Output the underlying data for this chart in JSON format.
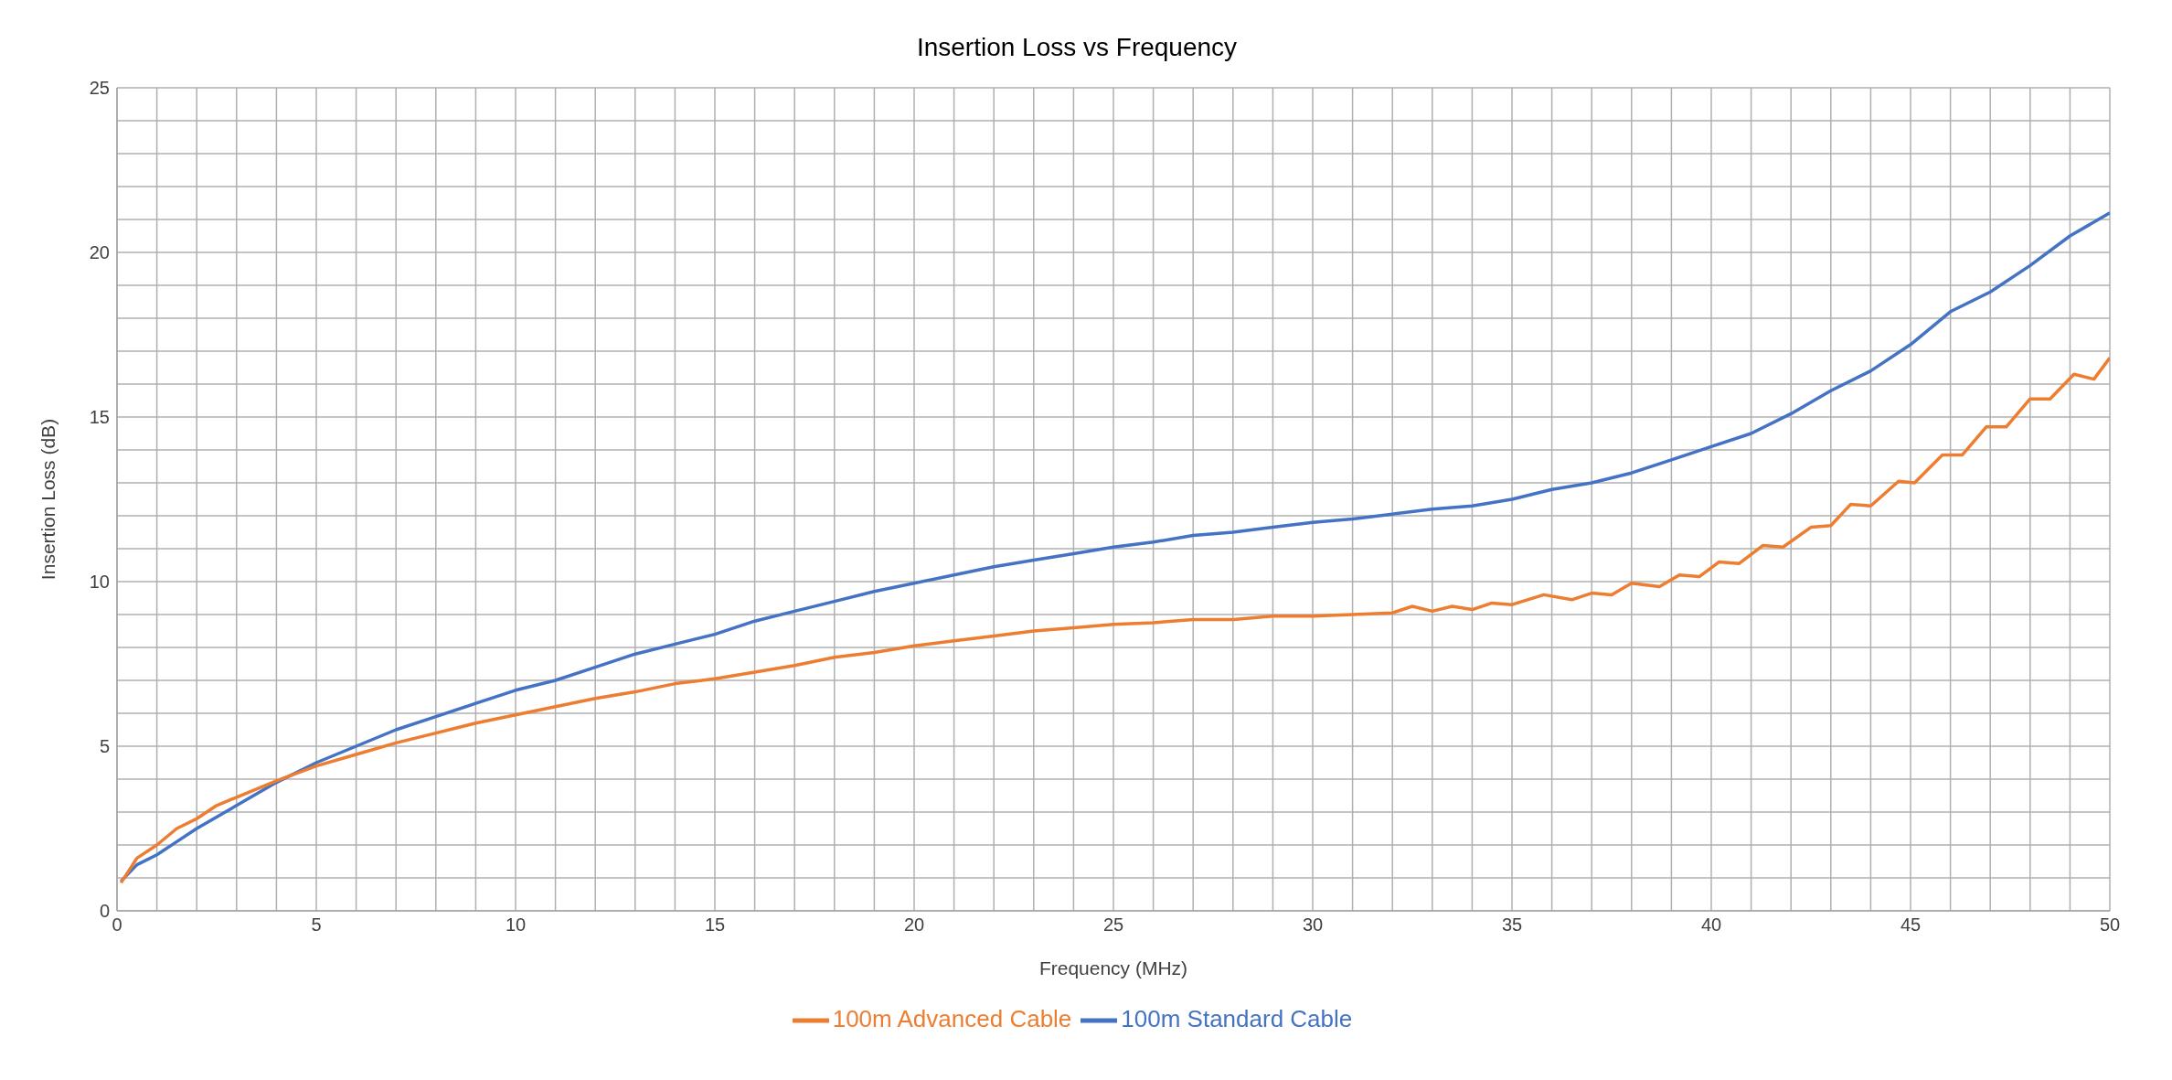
{
  "chart_data": {
    "type": "line",
    "title": "Insertion Loss vs Frequency",
    "xlabel": "Frequency (MHz)",
    "ylabel": "Insertion Loss (dB)",
    "xlim": [
      0,
      50
    ],
    "ylim": [
      0,
      25
    ],
    "xticks": [
      0,
      {
        "value": 1,
        "label": null
      },
      {
        "value": 2,
        "label": null
      },
      {
        "value": 3,
        "label": null
      },
      {
        "value": 4,
        "label": null
      },
      5,
      {
        "value": 6,
        "label": null
      },
      {
        "value": 7,
        "label": null
      },
      {
        "value": 8,
        "label": null
      },
      {
        "value": 9,
        "label": null
      },
      10,
      {
        "value": 11,
        "label": null
      },
      {
        "value": 12,
        "label": null
      },
      {
        "value": 13,
        "label": null
      },
      {
        "value": 14,
        "label": null
      },
      15,
      {
        "value": 16,
        "label": null
      },
      {
        "value": 17,
        "label": null
      },
      {
        "value": 18,
        "label": null
      },
      {
        "value": 19,
        "label": null
      },
      20,
      {
        "value": 21,
        "label": null
      },
      {
        "value": 22,
        "label": null
      },
      {
        "value": 23,
        "label": null
      },
      {
        "value": 24,
        "label": null
      },
      25,
      {
        "value": 26,
        "label": null
      },
      {
        "value": 27,
        "label": null
      },
      {
        "value": 28,
        "label": null
      },
      {
        "value": 29,
        "label": null
      },
      30,
      {
        "value": 31,
        "label": null
      },
      {
        "value": 32,
        "label": null
      },
      {
        "value": 33,
        "label": null
      },
      {
        "value": 34,
        "label": null
      },
      35,
      {
        "value": 36,
        "label": null
      },
      {
        "value": 37,
        "label": null
      },
      {
        "value": 38,
        "label": null
      },
      {
        "value": 39,
        "label": null
      },
      40,
      {
        "value": 41,
        "label": null
      },
      {
        "value": 42,
        "label": null
      },
      {
        "value": 43,
        "label": null
      },
      {
        "value": 44,
        "label": null
      },
      45,
      {
        "value": 46,
        "label": null
      },
      {
        "value": 47,
        "label": null
      },
      {
        "value": 48,
        "label": null
      },
      {
        "value": 49,
        "label": null
      },
      50
    ],
    "yticks": [
      0,
      {
        "value": 1,
        "label": null
      },
      {
        "value": 2,
        "label": null
      },
      {
        "value": 3,
        "label": null
      },
      {
        "value": 4,
        "label": null
      },
      5,
      {
        "value": 6,
        "label": null
      },
      {
        "value": 7,
        "label": null
      },
      {
        "value": 8,
        "label": null
      },
      {
        "value": 9,
        "label": null
      },
      10,
      {
        "value": 11,
        "label": null
      },
      {
        "value": 12,
        "label": null
      },
      {
        "value": 13,
        "label": null
      },
      {
        "value": 14,
        "label": null
      },
      15,
      {
        "value": 16,
        "label": null
      },
      {
        "value": 17,
        "label": null
      },
      {
        "value": 18,
        "label": null
      },
      {
        "value": 19,
        "label": null
      },
      20,
      {
        "value": 21,
        "label": null
      },
      {
        "value": 22,
        "label": null
      },
      {
        "value": 23,
        "label": null
      },
      {
        "value": 24,
        "label": null
      },
      25
    ],
    "grid": true,
    "legend": "bottom",
    "line_style": "solid",
    "series": [
      {
        "name": "100m Standard Cable",
        "color": "#4472c4",
        "x": [
          0.1,
          0.5,
          1,
          1.5,
          2,
          3,
          4,
          5,
          6,
          7,
          8,
          9,
          10,
          11,
          12,
          13,
          14,
          15,
          16,
          17,
          18,
          19,
          20,
          21,
          22,
          23,
          24,
          25,
          26,
          27,
          28,
          29,
          30,
          31,
          32,
          33,
          34,
          35,
          36,
          37,
          38,
          39,
          40,
          41,
          42,
          43,
          44,
          45,
          46,
          47,
          48,
          49,
          50
        ],
        "values": [
          0.9,
          1.4,
          1.7,
          2.1,
          2.5,
          3.2,
          3.9,
          4.5,
          5.0,
          5.5,
          5.9,
          6.3,
          6.7,
          7.0,
          7.4,
          7.8,
          8.1,
          8.4,
          8.8,
          9.1,
          9.4,
          9.7,
          9.95,
          10.2,
          10.45,
          10.65,
          10.85,
          11.05,
          11.2,
          11.4,
          11.5,
          11.65,
          11.8,
          11.9,
          12.05,
          12.2,
          12.3,
          12.5,
          12.8,
          13.0,
          13.3,
          13.7,
          14.1,
          14.5,
          15.1,
          15.8,
          16.4,
          17.2,
          18.2,
          18.8,
          19.6,
          20.5,
          21.2
        ]
      },
      {
        "name": "100m Advanced Cable",
        "color": "#ed7d31",
        "x": [
          0.1,
          0.5,
          1,
          1.5,
          2,
          2.5,
          3,
          4,
          5,
          6,
          7,
          8,
          9,
          10,
          11,
          12,
          13,
          14,
          15,
          16,
          17,
          18,
          19,
          20,
          21,
          22,
          23,
          24,
          25,
          26,
          27,
          28,
          29,
          30,
          31,
          32,
          32.5,
          33,
          33.5,
          34,
          34.5,
          35,
          35.8,
          36.5,
          37,
          37.5,
          38,
          38.7,
          39.2,
          39.7,
          40.2,
          40.7,
          41.3,
          41.8,
          42.5,
          43,
          43.5,
          44,
          44.7,
          45.1,
          45.8,
          46.3,
          46.9,
          47.4,
          48,
          48.5,
          49.1,
          49.6,
          50
        ],
        "values": [
          0.85,
          1.6,
          2.0,
          2.5,
          2.8,
          3.2,
          3.45,
          3.95,
          4.4,
          4.75,
          5.1,
          5.4,
          5.7,
          5.95,
          6.2,
          6.45,
          6.65,
          6.9,
          7.05,
          7.25,
          7.45,
          7.7,
          7.85,
          8.05,
          8.2,
          8.35,
          8.5,
          8.6,
          8.7,
          8.75,
          8.85,
          8.85,
          8.95,
          8.95,
          9.0,
          9.05,
          9.25,
          9.1,
          9.25,
          9.15,
          9.35,
          9.3,
          9.6,
          9.45,
          9.65,
          9.6,
          9.95,
          9.85,
          10.2,
          10.15,
          10.6,
          10.55,
          11.1,
          11.05,
          11.65,
          11.7,
          12.35,
          12.3,
          13.05,
          13.0,
          13.85,
          13.85,
          14.7,
          14.7,
          15.55,
          15.55,
          16.3,
          16.15,
          16.8
        ]
      }
    ]
  }
}
